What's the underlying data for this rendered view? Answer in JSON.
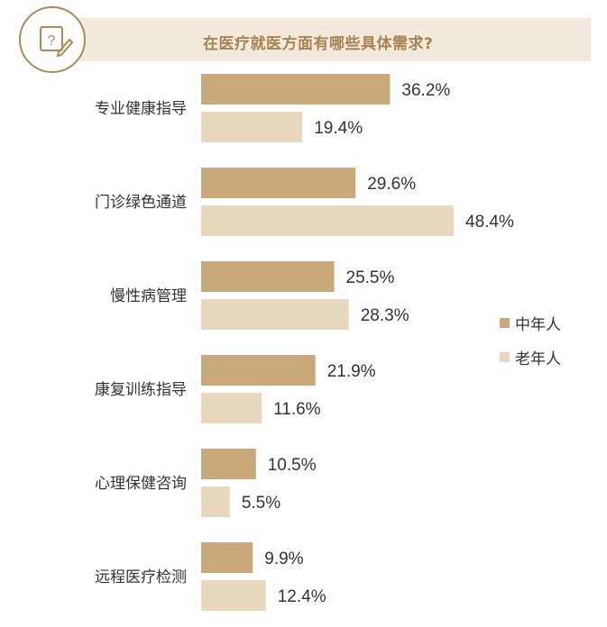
{
  "colors": {
    "middle_aged": "#c9a97a",
    "elderly": "#e8d9be",
    "title_band": "#f1eadd",
    "title_text": "#a8834f",
    "icon_ring": "#b08a55"
  },
  "title": "在医疗就医方面有哪些具体需求?",
  "icon": "question-edit-icon",
  "legend": [
    {
      "label": "中年人",
      "color": "#c9a97a"
    },
    {
      "label": "老年人",
      "color": "#e8d9be"
    }
  ],
  "chart_data": {
    "type": "bar",
    "orientation": "horizontal",
    "title": "在医疗就医方面有哪些具体需求?",
    "categories": [
      "专业健康指导",
      "门诊绿色通道",
      "慢性病管理",
      "康复训练指导",
      "心理保健咨询",
      "远程医疗检测"
    ],
    "series": [
      {
        "name": "中年人",
        "values": [
          36.2,
          29.6,
          25.5,
          21.9,
          10.5,
          9.9
        ],
        "labels": [
          "36.2%",
          "29.6%",
          "25.5%",
          "21.9%",
          "10.5%",
          "9.9%"
        ]
      },
      {
        "name": "老年人",
        "values": [
          19.4,
          48.4,
          28.3,
          11.6,
          5.5,
          12.4
        ],
        "labels": [
          "19.4%",
          "48.4%",
          "28.3%",
          "11.6%",
          "5.5%",
          "12.4%"
        ]
      }
    ],
    "xlim": [
      0,
      48.4
    ],
    "unit": "%",
    "legend_position": "right",
    "grid": false
  }
}
